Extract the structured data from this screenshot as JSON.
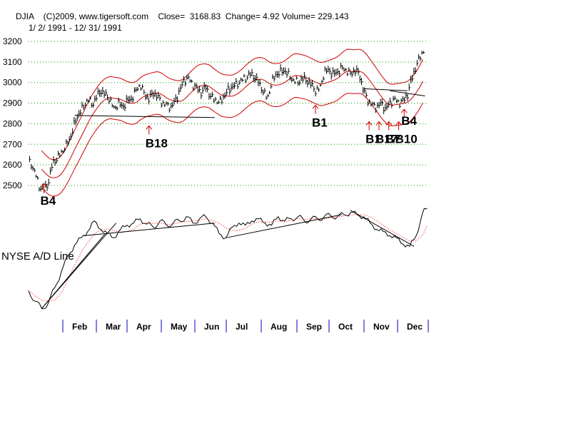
{
  "header": {
    "line1": "DJIA    (C)2009, www.tigersoft.com    Close=  3168.83  Change= 4.92 Volume= 229.143",
    "line2": "1/ 2/ 1991 - 12/ 31/ 1991"
  },
  "colors": {
    "bars": "#000000",
    "bands": "#d00000",
    "grid": "#00a000",
    "signal": "#d00000",
    "month_tick": "#0000cc",
    "ad_ma": "#ff0000"
  },
  "chart_data": [
    {
      "type": "ohlc",
      "title": "DJIA",
      "ylim": [
        2460,
        3210
      ],
      "yticks": [
        2500,
        2600,
        2700,
        2800,
        2900,
        3000,
        3100,
        3200
      ],
      "x_range": [
        0,
        365
      ],
      "series_approx_close": [
        {
          "d": 2,
          "v": 2610
        },
        {
          "d": 6,
          "v": 2560
        },
        {
          "d": 10,
          "v": 2490
        },
        {
          "d": 14,
          "v": 2480
        },
        {
          "d": 18,
          "v": 2510
        },
        {
          "d": 22,
          "v": 2610
        },
        {
          "d": 26,
          "v": 2630
        },
        {
          "d": 30,
          "v": 2660
        },
        {
          "d": 34,
          "v": 2690
        },
        {
          "d": 38,
          "v": 2730
        },
        {
          "d": 42,
          "v": 2800
        },
        {
          "d": 46,
          "v": 2850
        },
        {
          "d": 50,
          "v": 2880
        },
        {
          "d": 54,
          "v": 2920
        },
        {
          "d": 58,
          "v": 2890
        },
        {
          "d": 62,
          "v": 2930
        },
        {
          "d": 66,
          "v": 2960
        },
        {
          "d": 70,
          "v": 2940
        },
        {
          "d": 74,
          "v": 2920
        },
        {
          "d": 78,
          "v": 2870
        },
        {
          "d": 82,
          "v": 2900
        },
        {
          "d": 86,
          "v": 2880
        },
        {
          "d": 90,
          "v": 2910
        },
        {
          "d": 94,
          "v": 2920
        },
        {
          "d": 98,
          "v": 2960
        },
        {
          "d": 102,
          "v": 2990
        },
        {
          "d": 106,
          "v": 2940
        },
        {
          "d": 110,
          "v": 2920
        },
        {
          "d": 114,
          "v": 2950
        },
        {
          "d": 118,
          "v": 2930
        },
        {
          "d": 122,
          "v": 2900
        },
        {
          "d": 126,
          "v": 2890
        },
        {
          "d": 130,
          "v": 2880
        },
        {
          "d": 134,
          "v": 2910
        },
        {
          "d": 138,
          "v": 2960
        },
        {
          "d": 142,
          "v": 3010
        },
        {
          "d": 146,
          "v": 3020
        },
        {
          "d": 150,
          "v": 2990
        },
        {
          "d": 154,
          "v": 2970
        },
        {
          "d": 158,
          "v": 2950
        },
        {
          "d": 162,
          "v": 2980
        },
        {
          "d": 166,
          "v": 2930
        },
        {
          "d": 170,
          "v": 2920
        },
        {
          "d": 174,
          "v": 2900
        },
        {
          "d": 178,
          "v": 2930
        },
        {
          "d": 182,
          "v": 2960
        },
        {
          "d": 186,
          "v": 2980
        },
        {
          "d": 190,
          "v": 2990
        },
        {
          "d": 194,
          "v": 3010
        },
        {
          "d": 198,
          "v": 3020
        },
        {
          "d": 202,
          "v": 3040
        },
        {
          "d": 206,
          "v": 3030
        },
        {
          "d": 210,
          "v": 3000
        },
        {
          "d": 214,
          "v": 2960
        },
        {
          "d": 218,
          "v": 2920
        },
        {
          "d": 222,
          "v": 3000
        },
        {
          "d": 226,
          "v": 3040
        },
        {
          "d": 230,
          "v": 3050
        },
        {
          "d": 234,
          "v": 3060
        },
        {
          "d": 238,
          "v": 3030
        },
        {
          "d": 242,
          "v": 3010
        },
        {
          "d": 246,
          "v": 3000
        },
        {
          "d": 250,
          "v": 3020
        },
        {
          "d": 254,
          "v": 3010
        },
        {
          "d": 258,
          "v": 2990
        },
        {
          "d": 262,
          "v": 2960
        },
        {
          "d": 266,
          "v": 2970
        },
        {
          "d": 270,
          "v": 3050
        },
        {
          "d": 274,
          "v": 3060
        },
        {
          "d": 278,
          "v": 3040
        },
        {
          "d": 282,
          "v": 3050
        },
        {
          "d": 286,
          "v": 3070
        },
        {
          "d": 290,
          "v": 3060
        },
        {
          "d": 294,
          "v": 3040
        },
        {
          "d": 298,
          "v": 3060
        },
        {
          "d": 302,
          "v": 3040
        },
        {
          "d": 306,
          "v": 2960
        },
        {
          "d": 310,
          "v": 2910
        },
        {
          "d": 314,
          "v": 2890
        },
        {
          "d": 318,
          "v": 2880
        },
        {
          "d": 322,
          "v": 2900
        },
        {
          "d": 326,
          "v": 2870
        },
        {
          "d": 330,
          "v": 2900
        },
        {
          "d": 334,
          "v": 2920
        },
        {
          "d": 338,
          "v": 2900
        },
        {
          "d": 342,
          "v": 2910
        },
        {
          "d": 346,
          "v": 2940
        },
        {
          "d": 350,
          "v": 3020
        },
        {
          "d": 354,
          "v": 3080
        },
        {
          "d": 358,
          "v": 3130
        },
        {
          "d": 362,
          "v": 3169
        }
      ],
      "signals": [
        {
          "label": "B4",
          "d": 14,
          "y": 2510,
          "pos": "below"
        },
        {
          "label": "B18",
          "d": 110,
          "y": 2790,
          "pos": "below"
        },
        {
          "label": "B1",
          "d": 262,
          "y": 2890,
          "pos": "below"
        },
        {
          "label": "B1",
          "d": 311,
          "y": 2810,
          "pos": "below"
        },
        {
          "label": "B17",
          "d": 320,
          "y": 2810,
          "pos": "below"
        },
        {
          "label": "B7",
          "d": 329,
          "y": 2810,
          "pos": "below"
        },
        {
          "label": "B10",
          "d": 338,
          "y": 2810,
          "pos": "below"
        },
        {
          "label": "B4",
          "d": 343,
          "y": 2870,
          "pos": "below"
        }
      ],
      "support_lines": [
        {
          "d1": 42,
          "y1": 2840,
          "d2": 170,
          "y2": 2830
        },
        {
          "d1": 306,
          "y1": 2970,
          "d2": 346,
          "y2": 2960
        },
        {
          "d1": 330,
          "y1": 2960,
          "d2": 362,
          "y2": 2935
        }
      ]
    },
    {
      "type": "line",
      "title": "NYSE A/D Line",
      "ylim": [
        0,
        100
      ],
      "series_approx": [
        {
          "d": 0,
          "v": 22
        },
        {
          "d": 6,
          "v": 12
        },
        {
          "d": 12,
          "v": 5
        },
        {
          "d": 18,
          "v": 10
        },
        {
          "d": 24,
          "v": 25
        },
        {
          "d": 30,
          "v": 40
        },
        {
          "d": 36,
          "v": 55
        },
        {
          "d": 42,
          "v": 65
        },
        {
          "d": 48,
          "v": 72
        },
        {
          "d": 54,
          "v": 78
        },
        {
          "d": 60,
          "v": 88
        },
        {
          "d": 66,
          "v": 80
        },
        {
          "d": 72,
          "v": 76
        },
        {
          "d": 78,
          "v": 72
        },
        {
          "d": 84,
          "v": 80
        },
        {
          "d": 90,
          "v": 84
        },
        {
          "d": 96,
          "v": 86
        },
        {
          "d": 102,
          "v": 90
        },
        {
          "d": 108,
          "v": 85
        },
        {
          "d": 114,
          "v": 82
        },
        {
          "d": 120,
          "v": 88
        },
        {
          "d": 126,
          "v": 84
        },
        {
          "d": 132,
          "v": 86
        },
        {
          "d": 138,
          "v": 88
        },
        {
          "d": 144,
          "v": 92
        },
        {
          "d": 150,
          "v": 86
        },
        {
          "d": 156,
          "v": 90
        },
        {
          "d": 162,
          "v": 92
        },
        {
          "d": 168,
          "v": 86
        },
        {
          "d": 174,
          "v": 76
        },
        {
          "d": 180,
          "v": 72
        },
        {
          "d": 186,
          "v": 82
        },
        {
          "d": 192,
          "v": 86
        },
        {
          "d": 198,
          "v": 84
        },
        {
          "d": 204,
          "v": 88
        },
        {
          "d": 210,
          "v": 90
        },
        {
          "d": 216,
          "v": 86
        },
        {
          "d": 222,
          "v": 84
        },
        {
          "d": 228,
          "v": 92
        },
        {
          "d": 234,
          "v": 88
        },
        {
          "d": 240,
          "v": 90
        },
        {
          "d": 246,
          "v": 92
        },
        {
          "d": 252,
          "v": 88
        },
        {
          "d": 258,
          "v": 90
        },
        {
          "d": 264,
          "v": 90
        },
        {
          "d": 270,
          "v": 92
        },
        {
          "d": 276,
          "v": 93
        },
        {
          "d": 282,
          "v": 92
        },
        {
          "d": 288,
          "v": 94
        },
        {
          "d": 294,
          "v": 96
        },
        {
          "d": 300,
          "v": 94
        },
        {
          "d": 306,
          "v": 92
        },
        {
          "d": 312,
          "v": 86
        },
        {
          "d": 318,
          "v": 80
        },
        {
          "d": 324,
          "v": 78
        },
        {
          "d": 330,
          "v": 74
        },
        {
          "d": 336,
          "v": 72
        },
        {
          "d": 342,
          "v": 66
        },
        {
          "d": 348,
          "v": 64
        },
        {
          "d": 354,
          "v": 74
        },
        {
          "d": 360,
          "v": 96
        },
        {
          "d": 364,
          "v": 100
        }
      ],
      "trend_lines": [
        {
          "d1": 12,
          "y1": 5,
          "d2": 80,
          "y2": 86
        },
        {
          "d1": 12,
          "y1": 5,
          "d2": 70,
          "y2": 76
        },
        {
          "d1": 50,
          "y1": 74,
          "d2": 170,
          "y2": 86
        },
        {
          "d1": 180,
          "y1": 72,
          "d2": 286,
          "y2": 94
        },
        {
          "d1": 294,
          "y1": 98,
          "d2": 352,
          "y2": 64
        }
      ]
    }
  ],
  "months": [
    "Feb",
    "Mar",
    "Apr",
    "May",
    "Jun",
    "Jul",
    "Aug",
    "Sep",
    "Oct",
    "Nov",
    "Dec"
  ]
}
